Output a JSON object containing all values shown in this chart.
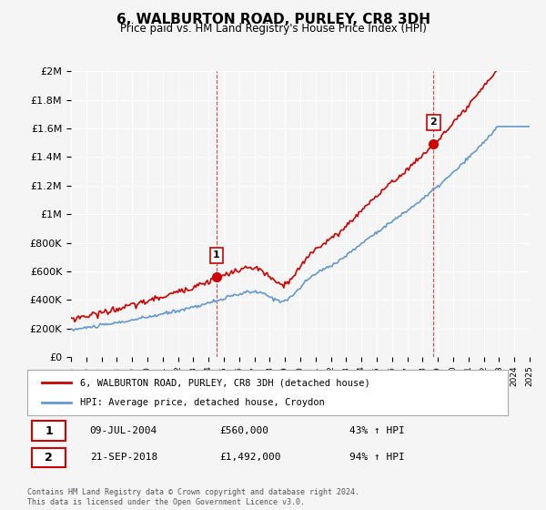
{
  "title": "6, WALBURTON ROAD, PURLEY, CR8 3DH",
  "subtitle": "Price paid vs. HM Land Registry's House Price Index (HPI)",
  "red_line_label": "6, WALBURTON ROAD, PURLEY, CR8 3DH (detached house)",
  "blue_line_label": "HPI: Average price, detached house, Croydon",
  "sale1_date": "09-JUL-2004",
  "sale1_price": 560000,
  "sale1_pct": "43% ↑ HPI",
  "sale2_date": "21-SEP-2018",
  "sale2_price": 1492000,
  "sale2_pct": "94% ↑ HPI",
  "sale1_year": 2004.52,
  "sale2_year": 2018.72,
  "xmin": 1995,
  "xmax": 2025,
  "ymin": 0,
  "ymax": 2000000,
  "red_color": "#cc0000",
  "blue_color": "#6699cc",
  "dashed_color": "#cc0000",
  "background_color": "#f5f5f5",
  "sale_marker_color": "#cc0000",
  "footnote": "Contains HM Land Registry data © Crown copyright and database right 2024.\nThis data is licensed under the Open Government Licence v3.0."
}
